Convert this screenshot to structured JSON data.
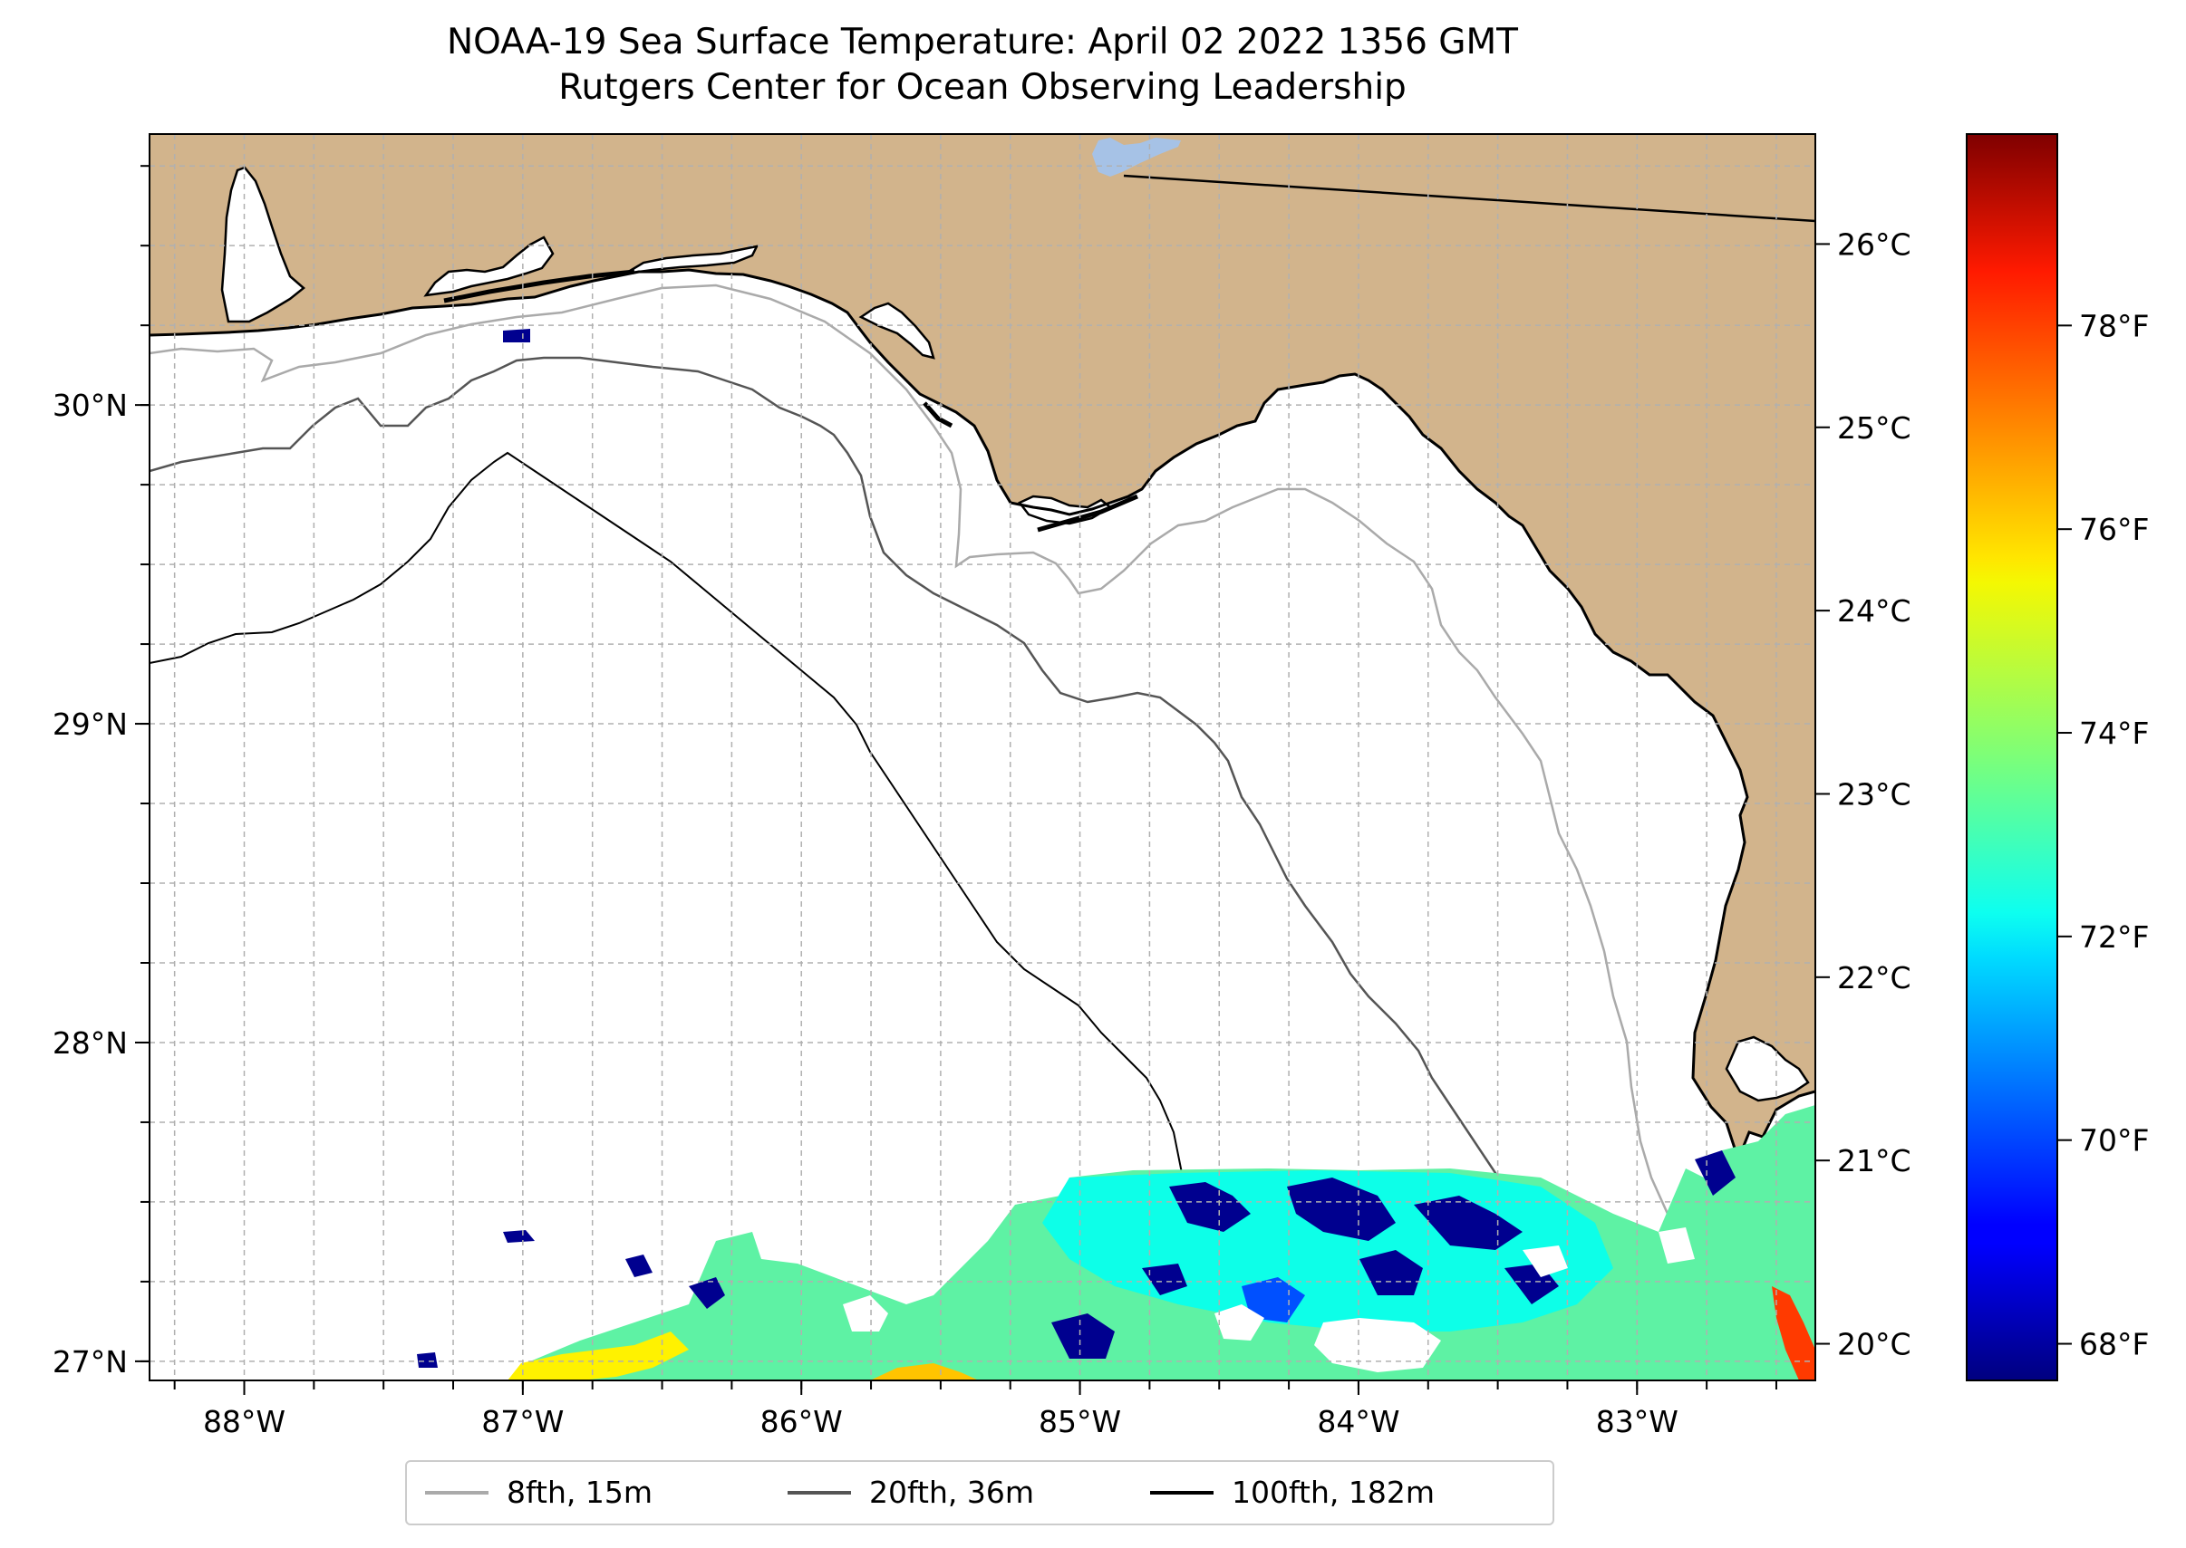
{
  "title": {
    "line1": "NOAA-19 Sea Surface Temperature: April 02 2022 1356 GMT",
    "line2": "Rutgers Center for Ocean Observing Leadership"
  },
  "map": {
    "lon_range": [
      -88.34,
      -82.36
    ],
    "lat_range": [
      26.94,
      30.85
    ],
    "colors": {
      "land": "#d2b48c",
      "water": "#ffffff",
      "lake": "#a6c2e6",
      "coastline": "#000000"
    },
    "lon_ticks": [
      {
        "value": -88,
        "label": "88°W"
      },
      {
        "value": -87,
        "label": "87°W"
      },
      {
        "value": -86,
        "label": "86°W"
      },
      {
        "value": -85,
        "label": "85°W"
      },
      {
        "value": -84,
        "label": "84°W"
      },
      {
        "value": -83,
        "label": "83°W"
      }
    ],
    "lat_ticks": [
      {
        "value": 27,
        "label": "27°N"
      },
      {
        "value": 28,
        "label": "28°N"
      },
      {
        "value": 29,
        "label": "29°N"
      },
      {
        "value": 30,
        "label": "30°N"
      }
    ],
    "grid": true,
    "gridline_spacing_deg": 0.25
  },
  "colorbar": {
    "colormap": "jet",
    "range_c": [
      19.8,
      26.6
    ],
    "celsius_ticks": [
      {
        "value": 20,
        "label": "20°C"
      },
      {
        "value": 21,
        "label": "21°C"
      },
      {
        "value": 22,
        "label": "22°C"
      },
      {
        "value": 23,
        "label": "23°C"
      },
      {
        "value": 24,
        "label": "24°C"
      },
      {
        "value": 25,
        "label": "25°C"
      },
      {
        "value": 26,
        "label": "26°C"
      }
    ],
    "fahrenheit_ticks": [
      {
        "value": 68,
        "label": "68°F"
      },
      {
        "value": 70,
        "label": "70°F"
      },
      {
        "value": 72,
        "label": "72°F"
      },
      {
        "value": 74,
        "label": "74°F"
      },
      {
        "value": 76,
        "label": "76°F"
      },
      {
        "value": 78,
        "label": "78°F"
      }
    ]
  },
  "legend": {
    "items": [
      {
        "label": "8fth, 15m",
        "color": "#aaaaaa"
      },
      {
        "label": "20fth, 36m",
        "color": "#555555"
      },
      {
        "label": "100fth, 182m",
        "color": "#000000"
      }
    ]
  }
}
